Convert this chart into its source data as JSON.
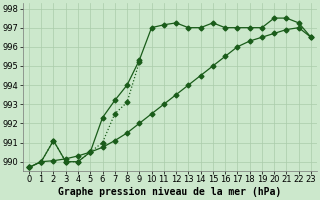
{
  "line_main_x": [
    0,
    1,
    2,
    3,
    4,
    5,
    6,
    7,
    8,
    9,
    10,
    11,
    12,
    13,
    14,
    15,
    16,
    17,
    18,
    19,
    20,
    21,
    22,
    23
  ],
  "line_main_y": [
    989.7,
    990.0,
    991.1,
    990.0,
    990.0,
    990.5,
    992.3,
    993.2,
    994.0,
    995.3,
    997.0,
    997.15,
    997.25,
    997.0,
    997.0,
    997.25,
    997.0,
    997.0,
    997.0,
    997.0,
    997.5,
    997.5,
    997.25,
    996.5
  ],
  "line_diag_x": [
    0,
    1,
    2,
    3,
    4,
    5,
    6,
    7,
    8,
    9,
    10,
    11,
    12,
    13,
    14,
    15,
    16,
    17,
    18,
    19,
    20,
    21,
    22,
    23
  ],
  "line_diag_y": [
    989.7,
    990.0,
    990.05,
    990.15,
    990.3,
    990.5,
    990.75,
    991.1,
    991.5,
    992.0,
    992.5,
    993.0,
    993.5,
    994.0,
    994.5,
    995.0,
    995.5,
    996.0,
    996.3,
    996.5,
    996.7,
    996.9,
    997.0,
    996.5
  ],
  "line_dash_x": [
    0,
    1,
    2,
    3,
    4,
    5,
    6,
    7,
    8,
    9
  ],
  "line_dash_y": [
    989.7,
    990.0,
    991.1,
    990.0,
    990.0,
    990.5,
    991.0,
    992.5,
    993.1,
    995.2
  ],
  "bg_color": "#cce8cc",
  "grid_color": "#aaccaa",
  "line_color": "#1a5c1a",
  "xlabel": "Graphe pression niveau de la mer (hPa)",
  "xlim": [
    -0.5,
    23.5
  ],
  "ylim": [
    989.5,
    998.3
  ],
  "yticks": [
    990,
    991,
    992,
    993,
    994,
    995,
    996,
    997,
    998
  ],
  "xticks": [
    0,
    1,
    2,
    3,
    4,
    5,
    6,
    7,
    8,
    9,
    10,
    11,
    12,
    13,
    14,
    15,
    16,
    17,
    18,
    19,
    20,
    21,
    22,
    23
  ],
  "markersize": 2.5,
  "linewidth": 0.9,
  "fontsize_xlabel": 7,
  "fontsize_ticks": 6
}
